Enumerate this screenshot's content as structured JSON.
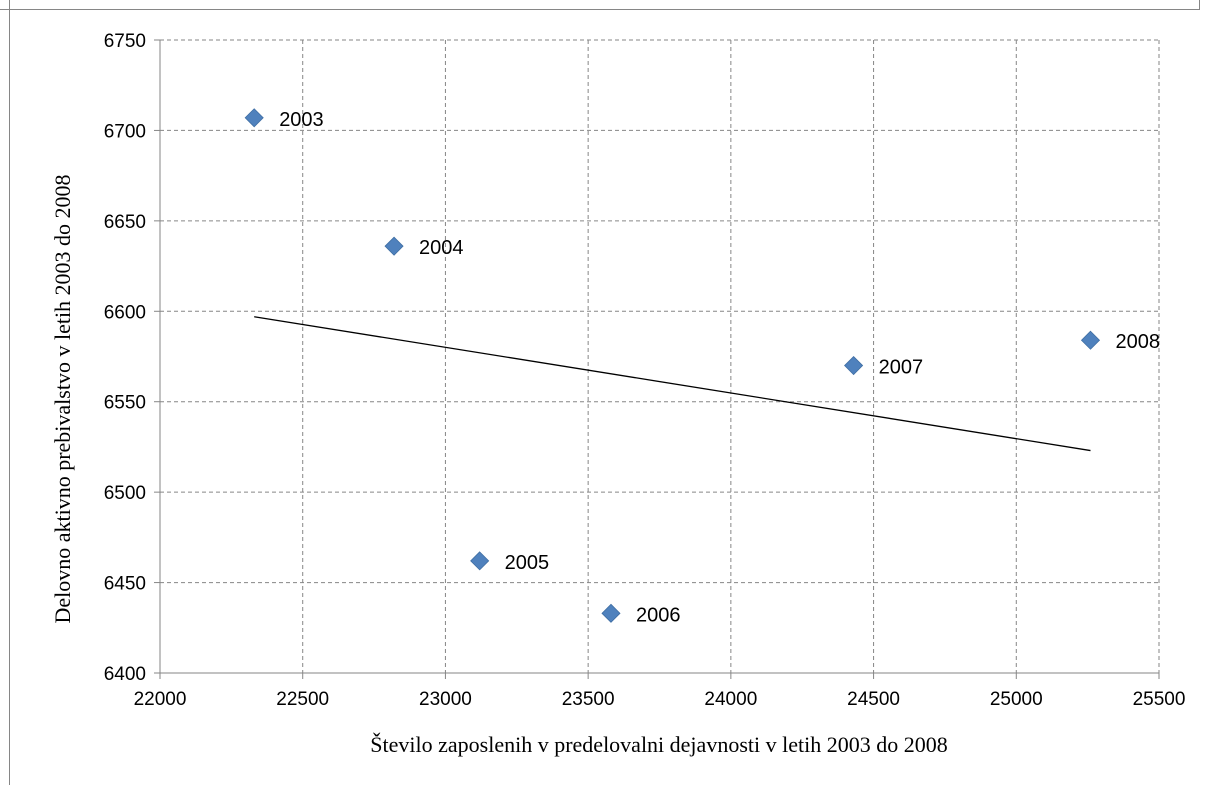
{
  "chart_data": {
    "type": "scatter",
    "title": "",
    "xlabel": "Število zaposlenih v predelovalni dejavnosti v letih 2003 do 2008",
    "ylabel": "Delovno aktivno prebivalstvo v letih 2003 do 2008",
    "xlim": [
      22000,
      25500
    ],
    "ylim": [
      6400,
      6750
    ],
    "x_ticks": [
      "22000",
      "22500",
      "23000",
      "23500",
      "24000",
      "24500",
      "25000",
      "25500"
    ],
    "y_ticks": [
      "6400",
      "6450",
      "6500",
      "6550",
      "6600",
      "6650",
      "6700",
      "6750"
    ],
    "grid": true,
    "legend": "none",
    "series": [
      {
        "marker": "diamond",
        "color": "#4f81bd",
        "points": [
          {
            "label": "2003",
            "x": 22330,
            "y": 6707
          },
          {
            "label": "2004",
            "x": 22820,
            "y": 6636
          },
          {
            "label": "2005",
            "x": 23120,
            "y": 6462
          },
          {
            "label": "2006",
            "x": 23580,
            "y": 6433
          },
          {
            "label": "2007",
            "x": 24430,
            "y": 6570
          },
          {
            "label": "2008",
            "x": 25260,
            "y": 6584
          }
        ]
      }
    ],
    "trendline": {
      "type": "linear",
      "color": "#000000",
      "start": {
        "x": 22330,
        "y": 6597
      },
      "end": {
        "x": 25260,
        "y": 6523
      }
    }
  }
}
